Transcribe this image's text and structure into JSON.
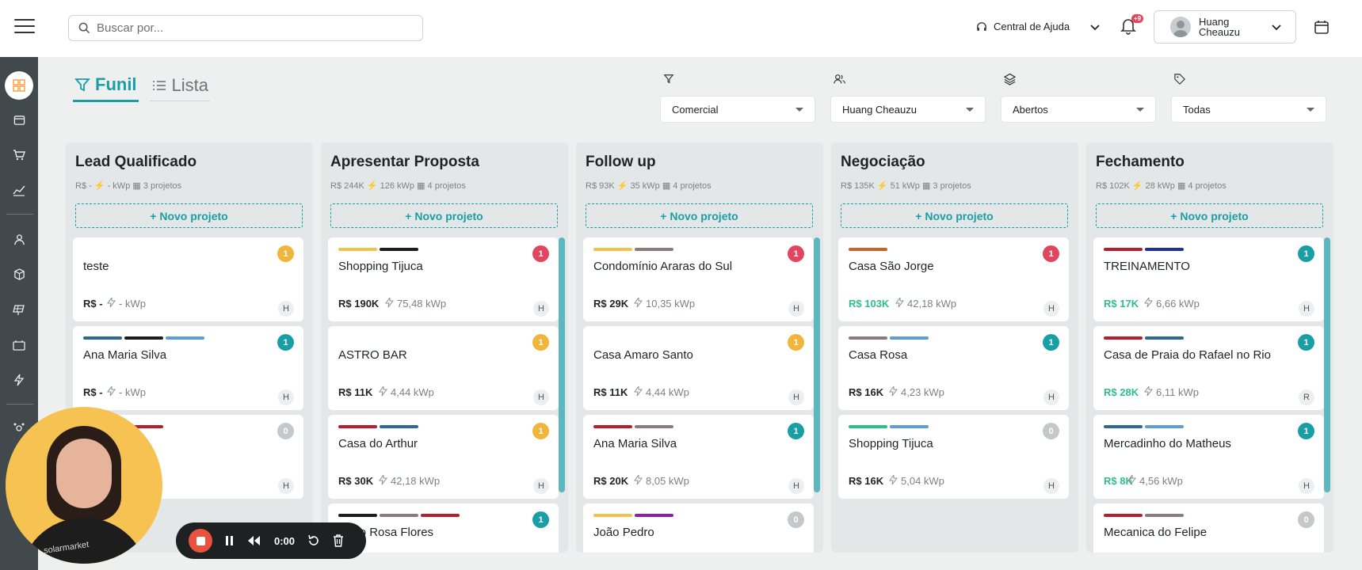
{
  "search": {
    "placeholder": "Buscar por..."
  },
  "header": {
    "help_label": "Central de Ajuda",
    "notif_badge": "+9",
    "user_name": "Huang Cheauzu"
  },
  "view_tabs": [
    {
      "label": "Funil"
    },
    {
      "label": "Lista"
    }
  ],
  "filters": [
    {
      "icon": "filter-icon",
      "value": "Comercial"
    },
    {
      "icon": "users-icon",
      "value": "Huang Cheauzu"
    },
    {
      "icon": "layers-icon",
      "value": "Abertos"
    },
    {
      "icon": "tag-icon",
      "value": "Todas"
    }
  ],
  "new_project_label": "+ Novo projeto",
  "columns": [
    {
      "title": "Lead Qualificado",
      "stats": "R$ -  ⚡ - kWp  ▦ 3 projetos",
      "cards": [
        {
          "title": "teste",
          "count": "1",
          "count_color": "#f2b53c",
          "price": "R$ -",
          "price_green": false,
          "kwp": "- kWp",
          "owner": "H",
          "tags": []
        },
        {
          "title": "Ana Maria Silva",
          "count": "1",
          "count_color": "#1a9ea6",
          "price": "R$ -",
          "price_green": false,
          "kwp": "- kWp",
          "owner": "H",
          "tags": [
            "#2c6a8f",
            "#1d1d1d",
            "#5b9fd6"
          ]
        },
        {
          "title": "",
          "count": "0",
          "count_color": "#c3c8cb",
          "price": "",
          "price_green": false,
          "kwp": "",
          "owner": "H",
          "tags": [
            "#8e1fa8",
            "#b81d2b"
          ]
        }
      ]
    },
    {
      "title": "Apresentar Proposta",
      "stats": "R$ 244K  ⚡ 126 kWp  ▦ 4 projetos",
      "cards": [
        {
          "title": "Shopping Tijuca",
          "count": "1",
          "count_color": "#e0475f",
          "price": "R$ 190K",
          "price_green": false,
          "kwp": "75,48 kWp",
          "owner": "H",
          "tags": [
            "#f2c14e",
            "#1d1d1d"
          ]
        },
        {
          "title": "ASTRO BAR",
          "count": "1",
          "count_color": "#f2b53c",
          "price": "R$ 11K",
          "price_green": false,
          "kwp": "4,44 kWp",
          "owner": "H",
          "tags": []
        },
        {
          "title": "Casa do Arthur",
          "count": "1",
          "count_color": "#f2b53c",
          "price": "R$ 30K",
          "price_green": false,
          "kwp": "42,18 kWp",
          "owner": "H",
          "tags": [
            "#b81d2b",
            "#2c6a8f"
          ]
        },
        {
          "title": "Adão Rosa Flores",
          "count": "1",
          "count_color": "#1a9ea6",
          "price": "",
          "price_green": false,
          "kwp": "",
          "owner": "",
          "tags": [
            "#1d1d1d",
            "#8a7c7c",
            "#b81d2b"
          ]
        }
      ]
    },
    {
      "title": "Follow up",
      "stats": "R$ 93K  ⚡ 35 kWp  ▦ 4 projetos",
      "cards": [
        {
          "title": "Condomínio Araras do Sul",
          "count": "1",
          "count_color": "#e0475f",
          "price": "R$ 29K",
          "price_green": false,
          "kwp": "10,35 kWp",
          "owner": "H",
          "tags": [
            "#f2c14e",
            "#8a7c7c"
          ]
        },
        {
          "title": "Casa Amaro Santo",
          "count": "1",
          "count_color": "#f2b53c",
          "price": "R$ 11K",
          "price_green": false,
          "kwp": "4,44 kWp",
          "owner": "H",
          "tags": []
        },
        {
          "title": "Ana Maria Silva",
          "count": "1",
          "count_color": "#1a9ea6",
          "price": "R$ 20K",
          "price_green": false,
          "kwp": "8,05 kWp",
          "owner": "H",
          "tags": [
            "#b81d2b",
            "#8a7c7c"
          ]
        },
        {
          "title": "João Pedro",
          "count": "0",
          "count_color": "#c3c8cb",
          "price": "",
          "price_green": false,
          "kwp": "",
          "owner": "",
          "tags": [
            "#f2c14e",
            "#8e1fa8"
          ]
        }
      ]
    },
    {
      "title": "Negociação",
      "stats": "R$ 135K  ⚡ 51 kWp  ▦ 3 projetos",
      "cards": [
        {
          "title": "Casa São Jorge",
          "count": "1",
          "count_color": "#e0475f",
          "price": "R$ 103K",
          "price_green": true,
          "kwp": "42,18 kWp",
          "owner": "H",
          "tags": [
            "#c9622b"
          ]
        },
        {
          "title": "Casa Rosa",
          "count": "1",
          "count_color": "#1a9ea6",
          "price": "R$ 16K",
          "price_green": false,
          "kwp": "4,23 kWp",
          "owner": "H",
          "tags": [
            "#8a7c7c",
            "#5b9fd6"
          ]
        },
        {
          "title": "Shopping Tijuca",
          "count": "0",
          "count_color": "#c3c8cb",
          "price": "R$ 16K",
          "price_green": false,
          "kwp": "5,04 kWp",
          "owner": "H",
          "tags": [
            "#2dbf8a",
            "#5b9fd6"
          ]
        }
      ]
    },
    {
      "title": "Fechamento",
      "stats": "R$ 102K  ⚡ 28 kWp  ▦ 4 projetos",
      "cards": [
        {
          "title": "TREINAMENTO",
          "count": "1",
          "count_color": "#1a9ea6",
          "price": "R$ 17K",
          "price_green": true,
          "kwp": "6,66 kWp",
          "owner": "H",
          "tags": [
            "#b81d2b",
            "#1f2f9e"
          ]
        },
        {
          "title": "Casa de Praia do Rafael no Rio",
          "count": "1",
          "count_color": "#1a9ea6",
          "price": "R$ 28K",
          "price_green": true,
          "kwp": "6,11 kWp",
          "owner": "R",
          "tags": [
            "#b81d2b",
            "#2c6a8f"
          ]
        },
        {
          "title": "Mercadinho do Matheus",
          "count": "1",
          "count_color": "#1a9ea6",
          "price": "R$ 8K",
          "price_green": true,
          "kwp": "4,56 kWp",
          "owner": "H",
          "tags": [
            "#2c6a8f",
            "#5b9fd6"
          ]
        },
        {
          "title": "Mecanica do Felipe",
          "count": "0",
          "count_color": "#c3c8cb",
          "price": "",
          "price_green": false,
          "kwp": "",
          "owner": "",
          "tags": [
            "#b81d2b",
            "#8a7c7c"
          ]
        }
      ]
    }
  ],
  "recorder": {
    "time": "0:00",
    "logo_text": "solarmarket"
  }
}
